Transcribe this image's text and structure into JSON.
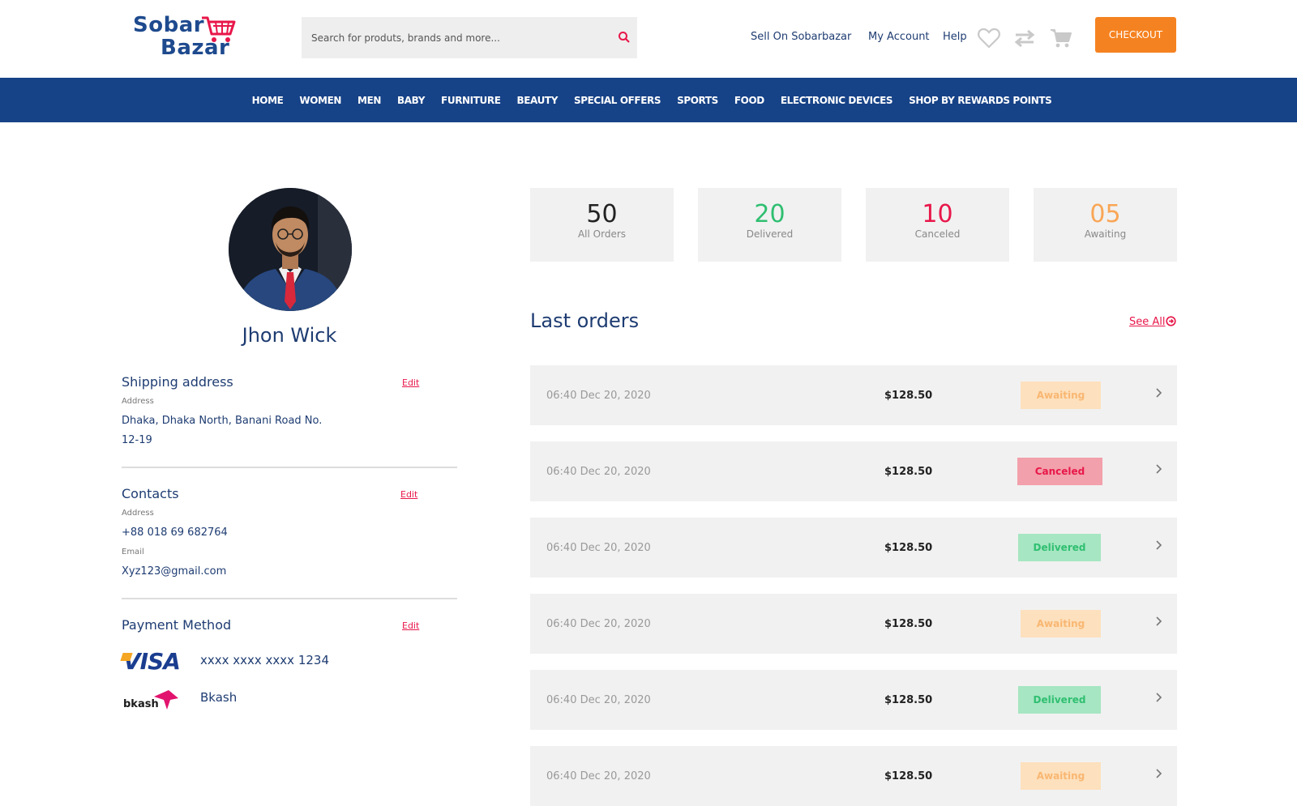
{
  "brand": {
    "line1": "Sobar",
    "line2": "Bazar",
    "cart_color": "#e8174a",
    "text_color": "#1e4a8e"
  },
  "header": {
    "search_placeholder": "Search for produts, brands and more...",
    "links": [
      "Sell On Sobarbazar",
      "My Account",
      "Help"
    ],
    "icons": [
      "heart-icon",
      "compare-arrows-icon",
      "cart-icon"
    ],
    "checkout_label": "CHECKOUT",
    "checkout_color": "#f58220"
  },
  "nav": {
    "background": "#164287",
    "items": [
      "HOME",
      "WOMEN",
      "MEN",
      "BABY",
      "FURNITURE",
      "BEAUTY",
      "SPECIAL OFFERS",
      "SPORTS",
      "FOOD",
      "ELECTRONIC DEVICES",
      "SHOP BY REWARDS POINTS"
    ]
  },
  "profile": {
    "name": "Jhon Wick",
    "shipping": {
      "title": "Shipping address",
      "edit_label": "Edit",
      "address_label": "Address",
      "address_line1": "Dhaka, Dhaka North, Banani Road No.",
      "address_line2": "12-19"
    },
    "contacts": {
      "title": "Contacts",
      "edit_label": "Edit",
      "phone_label": "Address",
      "phone": "+88 018 69 682764",
      "email_label": "Email",
      "email": "Xyz123@gmail.com"
    },
    "payment": {
      "title": "Payment Method",
      "edit_label": "Edit",
      "visa_logo": "VISA",
      "visa_number": "xxxx xxxx xxxx 1234",
      "bkash_logo": "bkash",
      "bkash_label": "Bkash"
    }
  },
  "stats": [
    {
      "value": "50",
      "label": "All Orders",
      "color": "#222222"
    },
    {
      "value": "20",
      "label": "Delivered",
      "color": "#2fbf71"
    },
    {
      "value": "10",
      "label": "Canceled",
      "color": "#e8174a"
    },
    {
      "value": "05",
      "label": "Awaiting",
      "color": "#f9a656"
    }
  ],
  "orders_section": {
    "title": "Last orders",
    "see_all_label": "See All"
  },
  "orders": [
    {
      "date": "06:40 Dec 20, 2020",
      "price": "$128.50",
      "status": "Awaiting"
    },
    {
      "date": "06:40 Dec 20, 2020",
      "price": "$128.50",
      "status": "Canceled"
    },
    {
      "date": "06:40 Dec 20, 2020",
      "price": "$128.50",
      "status": "Delivered"
    },
    {
      "date": "06:40 Dec 20, 2020",
      "price": "$128.50",
      "status": "Awaiting"
    },
    {
      "date": "06:40 Dec 20, 2020",
      "price": "$128.50",
      "status": "Delivered"
    },
    {
      "date": "06:40 Dec 20, 2020",
      "price": "$128.50",
      "status": "Awaiting"
    }
  ],
  "status_colors": {
    "Awaiting": {
      "bg": "#fde0bd",
      "fg": "#f9b772"
    },
    "Canceled": {
      "bg": "#f2a0ab",
      "fg": "#e8174a"
    },
    "Delivered": {
      "bg": "#a6e6c2",
      "fg": "#2fbf71"
    }
  }
}
